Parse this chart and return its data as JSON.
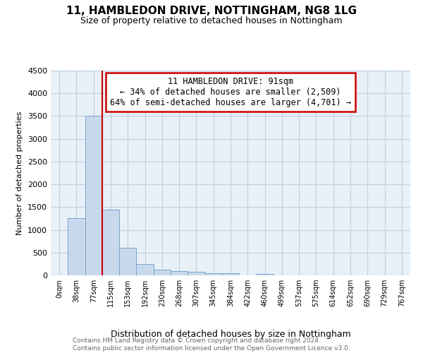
{
  "title": "11, HAMBLEDON DRIVE, NOTTINGHAM, NG8 1LG",
  "subtitle": "Size of property relative to detached houses in Nottingham",
  "xlabel": "Distribution of detached houses by size in Nottingham",
  "ylabel": "Number of detached properties",
  "categories": [
    "0sqm",
    "38sqm",
    "77sqm",
    "115sqm",
    "153sqm",
    "192sqm",
    "230sqm",
    "268sqm",
    "307sqm",
    "345sqm",
    "384sqm",
    "422sqm",
    "460sqm",
    "499sqm",
    "537sqm",
    "575sqm",
    "614sqm",
    "652sqm",
    "690sqm",
    "729sqm",
    "767sqm"
  ],
  "values": [
    0,
    1250,
    3500,
    1450,
    600,
    250,
    130,
    100,
    80,
    50,
    40,
    0,
    30,
    0,
    0,
    0,
    0,
    0,
    0,
    0,
    0
  ],
  "bar_color": "#c9d9ed",
  "bar_edge_color": "#7aa4cc",
  "red_line_x": 3,
  "annotation_lines": [
    "11 HAMBLEDON DRIVE: 91sqm",
    "← 34% of detached houses are smaller (2,509)",
    "64% of semi-detached houses are larger (4,701) →"
  ],
  "annotation_box_color": "#ffffff",
  "annotation_box_edge": "#cc0000",
  "ylim": [
    0,
    4500
  ],
  "yticks": [
    0,
    500,
    1000,
    1500,
    2000,
    2500,
    3000,
    3500,
    4000,
    4500
  ],
  "grid_color": "#c0cfe0",
  "bg_color": "#e8f0f8",
  "footer_line1": "Contains HM Land Registry data © Crown copyright and database right 2024.",
  "footer_line2": "Contains public sector information licensed under the Open Government Licence v3.0."
}
